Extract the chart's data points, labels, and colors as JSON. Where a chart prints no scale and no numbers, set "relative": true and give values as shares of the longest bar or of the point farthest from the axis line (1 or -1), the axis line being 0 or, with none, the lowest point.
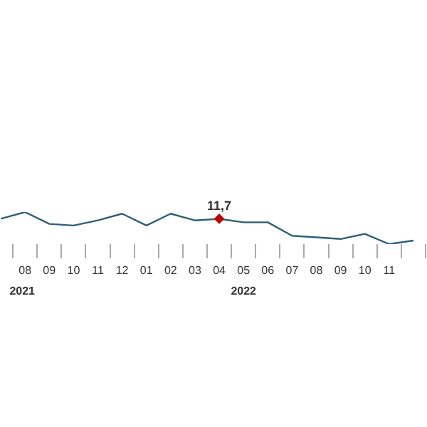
{
  "chart_data": {
    "type": "line",
    "relative": true,
    "categories": [
      null,
      "08",
      "09",
      "10",
      "11",
      "12",
      "01",
      "02",
      "03",
      "04",
      "05",
      "06",
      "07",
      "08",
      "09",
      "10",
      "11",
      null
    ],
    "series": [
      {
        "marker": "none",
        "color": "#2e5f7a",
        "values": [
          0.79,
          1,
          0.63,
          0.58,
          0.74,
          0.95,
          0.58,
          0.95,
          0.74,
          0.79,
          0.68,
          0.68,
          0.26,
          0.21,
          0.16,
          0.32,
          0,
          0.11
        ]
      },
      {
        "type": "scatter",
        "marker": "diamond",
        "color": "#c00000",
        "x": [
          "04"
        ],
        "values": [
          0.79
        ]
      }
    ],
    "annotations": [
      "11,7",
      "2021",
      "2022"
    ]
  }
}
